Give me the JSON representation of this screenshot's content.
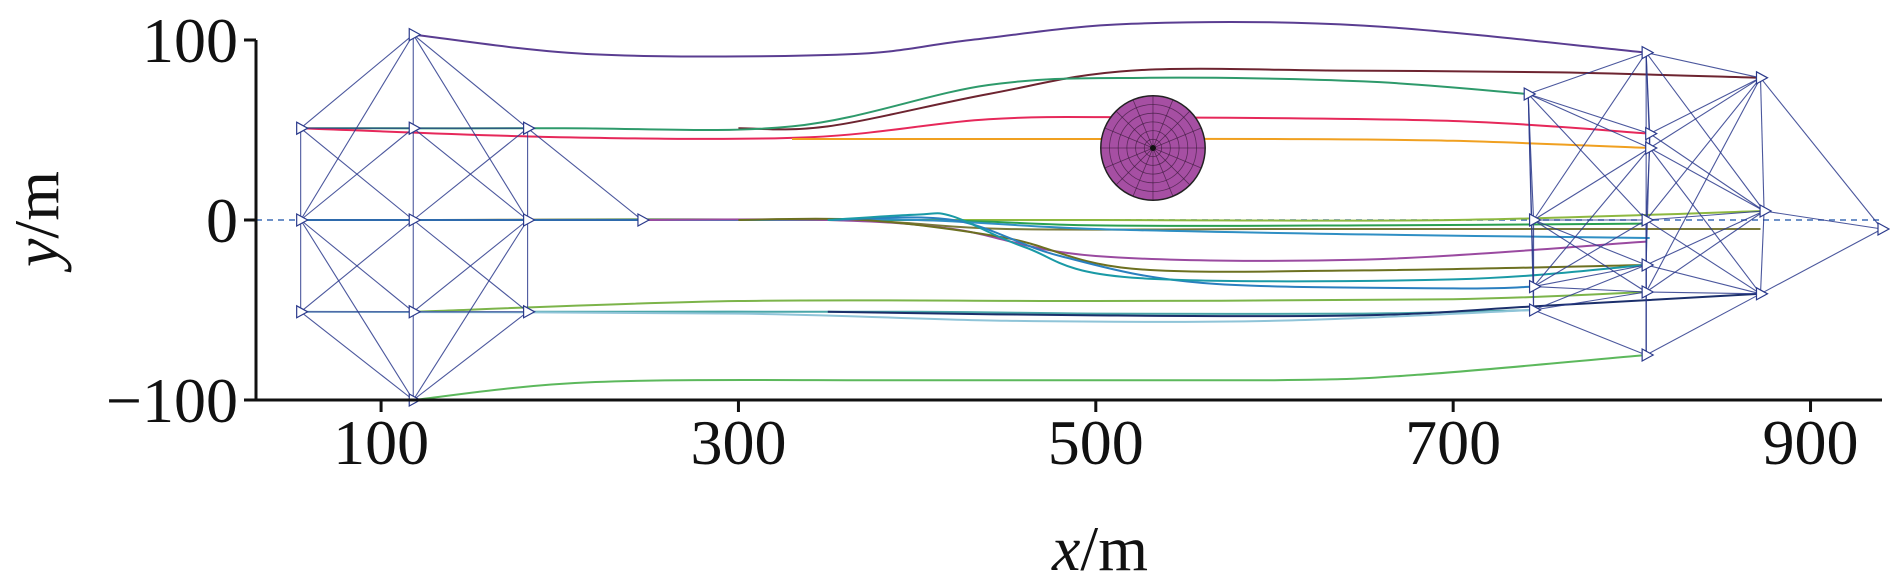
{
  "chart_data": {
    "type": "line",
    "title": "",
    "xlabel": {
      "var": "x",
      "unit": "/m"
    },
    "ylabel": {
      "var": "y",
      "unit": "/m"
    },
    "xlim": [
      30,
      940
    ],
    "ylim": [
      -100,
      100
    ],
    "xticks": [
      100,
      300,
      500,
      700,
      900
    ],
    "yticks": [
      -100,
      0,
      100
    ],
    "x_tick_labels": [
      "100",
      "300",
      "500",
      "700",
      "900"
    ],
    "y_tick_labels": [
      "−100",
      "0",
      "100"
    ],
    "grid": false,
    "reference_line": {
      "y": 0,
      "style": "dashed",
      "color": "#3f6db5"
    },
    "obstacle": {
      "shape": "sphere",
      "center": [
        532,
        40
      ],
      "radius": 29,
      "color": "#a64fa3"
    },
    "start_formation": {
      "nodes": [
        [
          55,
          51
        ],
        [
          118,
          103
        ],
        [
          118,
          51
        ],
        [
          182,
          51
        ],
        [
          55,
          0
        ],
        [
          118,
          0
        ],
        [
          182,
          0
        ],
        [
          246,
          0
        ],
        [
          55,
          -51
        ],
        [
          118,
          -51
        ],
        [
          182,
          -51
        ],
        [
          118,
          -100
        ]
      ],
      "edges": [
        [
          0,
          1
        ],
        [
          0,
          2
        ],
        [
          1,
          2
        ],
        [
          1,
          3
        ],
        [
          2,
          3
        ],
        [
          0,
          4
        ],
        [
          0,
          5
        ],
        [
          2,
          4
        ],
        [
          2,
          5
        ],
        [
          2,
          6
        ],
        [
          3,
          5
        ],
        [
          3,
          6
        ],
        [
          3,
          7
        ],
        [
          4,
          5
        ],
        [
          5,
          6
        ],
        [
          6,
          7
        ],
        [
          4,
          8
        ],
        [
          4,
          9
        ],
        [
          5,
          8
        ],
        [
          5,
          9
        ],
        [
          5,
          10
        ],
        [
          6,
          9
        ],
        [
          6,
          10
        ],
        [
          8,
          9
        ],
        [
          9,
          10
        ],
        [
          8,
          11
        ],
        [
          9,
          11
        ],
        [
          10,
          11
        ],
        [
          1,
          4
        ],
        [
          1,
          6
        ],
        [
          11,
          4
        ],
        [
          11,
          6
        ]
      ]
    },
    "end_formation": {
      "nodes": [
        [
          808,
          93
        ],
        [
          872,
          79
        ],
        [
          742,
          70
        ],
        [
          810,
          48
        ],
        [
          810,
          40
        ],
        [
          745,
          0
        ],
        [
          808,
          0
        ],
        [
          874,
          5
        ],
        [
          940,
          -5
        ],
        [
          745,
          -37
        ],
        [
          808,
          -25
        ],
        [
          872,
          -41
        ],
        [
          808,
          -40
        ],
        [
          745,
          -50
        ],
        [
          808,
          -75
        ]
      ],
      "edges": [
        [
          0,
          1
        ],
        [
          0,
          2
        ],
        [
          0,
          3
        ],
        [
          0,
          4
        ],
        [
          1,
          3
        ],
        [
          1,
          4
        ],
        [
          2,
          3
        ],
        [
          2,
          4
        ],
        [
          3,
          4
        ],
        [
          2,
          5
        ],
        [
          2,
          6
        ],
        [
          0,
          6
        ],
        [
          1,
          6
        ],
        [
          1,
          7
        ],
        [
          1,
          8
        ],
        [
          4,
          5
        ],
        [
          4,
          6
        ],
        [
          4,
          7
        ],
        [
          3,
          7
        ],
        [
          5,
          6
        ],
        [
          6,
          7
        ],
        [
          7,
          8
        ],
        [
          5,
          9
        ],
        [
          5,
          10
        ],
        [
          6,
          9
        ],
        [
          6,
          10
        ],
        [
          6,
          11
        ],
        [
          7,
          10
        ],
        [
          7,
          11
        ],
        [
          7,
          12
        ],
        [
          8,
          11
        ],
        [
          9,
          10
        ],
        [
          10,
          11
        ],
        [
          9,
          12
        ],
        [
          10,
          12
        ],
        [
          11,
          12
        ],
        [
          9,
          13
        ],
        [
          12,
          13
        ],
        [
          13,
          14
        ],
        [
          12,
          14
        ],
        [
          11,
          14
        ],
        [
          10,
          14
        ],
        [
          5,
          12
        ],
        [
          6,
          12
        ],
        [
          13,
          10
        ],
        [
          2,
          9
        ],
        [
          0,
          5
        ],
        [
          1,
          12
        ],
        [
          3,
          10
        ],
        [
          4,
          11
        ],
        [
          2,
          13
        ],
        [
          0,
          7
        ],
        [
          6,
          14
        ],
        [
          4,
          9
        ]
      ]
    },
    "series": [
      {
        "color": "#5a3d91",
        "x": [
          118,
          220,
          360,
          430,
          520,
          650,
          808
        ],
        "y": [
          103,
          92,
          92,
          100,
          109,
          108,
          93
        ]
      },
      {
        "color": "#6d2430",
        "x": [
          300,
          350,
          440,
          520,
          640,
          760,
          872
        ],
        "y": [
          51,
          52,
          70,
          83,
          83,
          82,
          79
        ]
      },
      {
        "color": "#2e9a6b",
        "x": [
          55,
          200,
          330,
          440,
          530,
          650,
          742
        ],
        "y": [
          51,
          51,
          52,
          75,
          79,
          77,
          70
        ]
      },
      {
        "color": "#e6285a",
        "x": [
          55,
          200,
          340,
          440,
          530,
          700,
          810
        ],
        "y": [
          51,
          46,
          46,
          56,
          57,
          55,
          48
        ]
      },
      {
        "color": "#f0a020",
        "x": [
          330,
          400,
          500,
          600,
          700,
          810
        ],
        "y": [
          45,
          45,
          45,
          45,
          44,
          40
        ]
      },
      {
        "color": "#8db840",
        "x": [
          55,
          300,
          500,
          700,
          874
        ],
        "y": [
          0,
          0,
          0,
          0,
          5
        ]
      },
      {
        "color": "#7a7a3a",
        "x": [
          118,
          350,
          450,
          600,
          750,
          872
        ],
        "y": [
          0,
          0,
          -5,
          -5,
          -5,
          -5
        ]
      },
      {
        "color": "#2aa050",
        "x": [
          182,
          400,
          500,
          650,
          808
        ],
        "y": [
          0,
          0,
          -3,
          -3,
          -2
        ]
      },
      {
        "color": "#2f8fc4",
        "x": [
          55,
          300,
          400,
          500,
          650,
          810
        ],
        "y": [
          0,
          0,
          0,
          -5,
          -8,
          -10
        ]
      },
      {
        "color": "#9a4aa0",
        "x": [
          246,
          350,
          420,
          500,
          650,
          808
        ],
        "y": [
          0,
          0,
          -5,
          -20,
          -22,
          -12
        ]
      },
      {
        "color": "#6c7020",
        "x": [
          300,
          370,
          450,
          520,
          650,
          808
        ],
        "y": [
          0,
          0,
          -10,
          -27,
          -28,
          -25
        ]
      },
      {
        "color": "#2a7fbf",
        "x": [
          350,
          420,
          480,
          560,
          700,
          745
        ],
        "y": [
          0,
          0,
          -20,
          -35,
          -38,
          -37
        ]
      },
      {
        "color": "#1a9aa6",
        "x": [
          350,
          400,
          420,
          460,
          520,
          700,
          808
        ],
        "y": [
          0,
          3,
          2,
          -15,
          -32,
          -33,
          -25
        ]
      },
      {
        "color": "#7cb44a",
        "x": [
          118,
          300,
          500,
          700,
          808
        ],
        "y": [
          -51,
          -45,
          -45,
          -44,
          -40
        ]
      },
      {
        "color": "#4aa6a8",
        "x": [
          182,
          400,
          500,
          650,
          745
        ],
        "y": [
          -51,
          -51,
          -52,
          -52,
          -50
        ]
      },
      {
        "color": "#1b2f6b",
        "x": [
          350,
          500,
          650,
          745,
          872
        ],
        "y": [
          -51,
          -53,
          -53,
          -48,
          -41
        ]
      },
      {
        "color": "#8fc4d8",
        "x": [
          55,
          300,
          450,
          600,
          745
        ],
        "y": [
          -51,
          -52,
          -56,
          -56,
          -50
        ]
      },
      {
        "color": "#5cb85c",
        "x": [
          118,
          220,
          400,
          600,
          680,
          808
        ],
        "y": [
          -100,
          -90,
          -89,
          -89,
          -86,
          -75
        ]
      }
    ]
  }
}
